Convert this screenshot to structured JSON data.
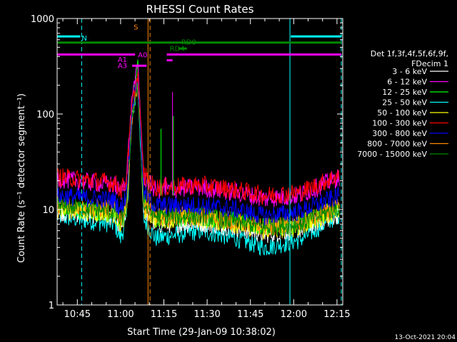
{
  "chart_data": {
    "type": "line",
    "title": "RHESSI Count Rates",
    "xlabel": "Start Time (29-Jan-09 10:38:02)",
    "ylabel": "Count Rate (s⁻¹ detector segment⁻¹)",
    "yscale": "log",
    "ylim": [
      1,
      1000
    ],
    "xlim": [
      "10:38",
      "12:17"
    ],
    "x_ticks": [
      "10:45",
      "11:00",
      "11:15",
      "11:30",
      "11:45",
      "12:00",
      "12:15"
    ],
    "y_ticks": [
      "1",
      "10",
      "100",
      "1000"
    ],
    "grid": false,
    "legend_title": [
      "Det 1f,3f,4f,5f,6f,9f,",
      "FDecim 1"
    ],
    "legend_position": "right",
    "timestamp": "13-Oct-2021 20:04",
    "series": [
      {
        "name": "3 - 6 keV",
        "color": "#ffffff",
        "values": [
          [
            0,
            9.5
          ],
          [
            20,
            8.5
          ],
          [
            22,
            6.5
          ],
          [
            24,
            9.5
          ],
          [
            26,
            110
          ],
          [
            28,
            220
          ],
          [
            30,
            10
          ],
          [
            34,
            7.0
          ],
          [
            50,
            7.2
          ],
          [
            62,
            6.5
          ],
          [
            72,
            5.5
          ],
          [
            84,
            6.2
          ],
          [
            98,
            9.0
          ]
        ]
      },
      {
        "name": "6 - 12 keV",
        "color": "#ff00ff",
        "values": [
          [
            0,
            21
          ],
          [
            20,
            18
          ],
          [
            22,
            15
          ],
          [
            24,
            21
          ],
          [
            26,
            160
          ],
          [
            28,
            330
          ],
          [
            30,
            22
          ],
          [
            34,
            16
          ],
          [
            50,
            17
          ],
          [
            62,
            15
          ],
          [
            72,
            13
          ],
          [
            84,
            14
          ],
          [
            98,
            22
          ]
        ]
      },
      {
        "name": "12 - 25 keV",
        "color": "#00ff00",
        "values": [
          [
            0,
            10.5
          ],
          [
            20,
            9.0
          ],
          [
            22,
            7.0
          ],
          [
            24,
            10
          ],
          [
            26,
            140
          ],
          [
            28,
            330
          ],
          [
            30,
            12
          ],
          [
            34,
            8.0
          ],
          [
            50,
            8.5
          ],
          [
            62,
            7.5
          ],
          [
            72,
            6.5
          ],
          [
            84,
            7.0
          ],
          [
            98,
            10.5
          ]
        ]
      },
      {
        "name": "25 - 50 keV",
        "color": "#00ffff",
        "values": [
          [
            0,
            8.5
          ],
          [
            20,
            7.0
          ],
          [
            22,
            5.0
          ],
          [
            24,
            8.0
          ],
          [
            26,
            90
          ],
          [
            28,
            200
          ],
          [
            30,
            8.0
          ],
          [
            34,
            5.0
          ],
          [
            50,
            6.0
          ],
          [
            62,
            5.0
          ],
          [
            72,
            4.0
          ],
          [
            84,
            4.8
          ],
          [
            98,
            9.0
          ]
        ]
      },
      {
        "name": "50 - 100 keV",
        "color": "#ffff00",
        "values": [
          [
            0,
            10
          ],
          [
            20,
            9.0
          ],
          [
            22,
            7.0
          ],
          [
            24,
            9.5
          ],
          [
            26,
            100
          ],
          [
            28,
            220
          ],
          [
            30,
            10
          ],
          [
            34,
            8.0
          ],
          [
            50,
            8.0
          ],
          [
            62,
            7.0
          ],
          [
            72,
            6.0
          ],
          [
            84,
            6.5
          ],
          [
            98,
            10
          ]
        ]
      },
      {
        "name": "100 - 300 keV",
        "color": "#ff0000",
        "values": [
          [
            0,
            22
          ],
          [
            20,
            19
          ],
          [
            22,
            16
          ],
          [
            24,
            20
          ],
          [
            26,
            130
          ],
          [
            28,
            260
          ],
          [
            30,
            23
          ],
          [
            34,
            17
          ],
          [
            50,
            18
          ],
          [
            62,
            16
          ],
          [
            72,
            14
          ],
          [
            84,
            15
          ],
          [
            98,
            23
          ]
        ]
      },
      {
        "name": "300 - 800 keV",
        "color": "#0000ff",
        "values": [
          [
            0,
            14
          ],
          [
            20,
            12.5
          ],
          [
            22,
            10
          ],
          [
            24,
            14
          ],
          [
            26,
            120
          ],
          [
            28,
            250
          ],
          [
            30,
            15
          ],
          [
            34,
            11
          ],
          [
            50,
            11
          ],
          [
            62,
            10
          ],
          [
            72,
            8.5
          ],
          [
            84,
            9.5
          ],
          [
            98,
            14
          ]
        ]
      },
      {
        "name": "800 - 7000 keV",
        "color": "#ff8800",
        "values": [
          [
            0,
            11
          ],
          [
            20,
            10
          ],
          [
            22,
            8.0
          ],
          [
            24,
            10.5
          ],
          [
            26,
            90
          ],
          [
            28,
            200
          ],
          [
            30,
            11
          ],
          [
            34,
            8.5
          ],
          [
            50,
            8.5
          ],
          [
            62,
            7.5
          ],
          [
            72,
            6.5
          ],
          [
            84,
            7.0
          ],
          [
            98,
            10.5
          ]
        ]
      },
      {
        "name": "7000 - 15000 keV",
        "color": "#008800",
        "values": [
          [
            0,
            11
          ],
          [
            20,
            9.5
          ],
          [
            22,
            7.5
          ],
          [
            24,
            10
          ],
          [
            26,
            95
          ],
          [
            28,
            210
          ],
          [
            30,
            11
          ],
          [
            34,
            8.5
          ],
          [
            50,
            8.5
          ],
          [
            62,
            7.5
          ],
          [
            72,
            6.5
          ],
          [
            84,
            7.0
          ],
          [
            98,
            10.5
          ]
        ]
      }
    ],
    "annotations": {
      "labels": [
        {
          "text": "N",
          "color": "#00ffff"
        },
        {
          "text": "S",
          "color": "#ff8800"
        },
        {
          "text": "RD0",
          "color": "#008800"
        },
        {
          "text": "RD4",
          "color": "#008800"
        },
        {
          "text": "A1",
          "color": "#ff00ff"
        },
        {
          "text": "A3",
          "color": "#ff00ff"
        },
        {
          "text": "A0",
          "color": "#ff00ff"
        }
      ],
      "vertical_lines": [
        {
          "x": 8.5,
          "color": "#00ffff",
          "style": "dashed"
        },
        {
          "x": 31.5,
          "color": "#ff8800",
          "style": "solid"
        },
        {
          "x": 32.2,
          "color": "#ff8800",
          "style": "dashed"
        },
        {
          "x": 80.7,
          "color": "#00ffff",
          "style": "solid"
        },
        {
          "x": 98.5,
          "color": "#00ffff",
          "style": "dashed"
        }
      ],
      "bands": [
        {
          "y": 650,
          "x_start": 0,
          "x_end": 8,
          "color": "#00ffff"
        },
        {
          "y": 650,
          "x_start": 81,
          "x_end": 98.5,
          "color": "#00ffff"
        },
        {
          "y": 560,
          "x_start": 0,
          "x_end": 98.5,
          "color": "#008800"
        },
        {
          "y": 485,
          "x_start": 42,
          "x_end": 45,
          "color": "#008800"
        },
        {
          "y": 420,
          "x_start": 0,
          "x_end": 27,
          "color": "#ff00ff"
        },
        {
          "y": 420,
          "x_start": 38,
          "x_end": 98.5,
          "color": "#ff00ff"
        },
        {
          "y": 365,
          "x_start": 38,
          "x_end": 40,
          "color": "#ff00ff"
        },
        {
          "y": 320,
          "x_start": 26,
          "x_end": 31,
          "color": "#ff00ff"
        }
      ]
    }
  }
}
